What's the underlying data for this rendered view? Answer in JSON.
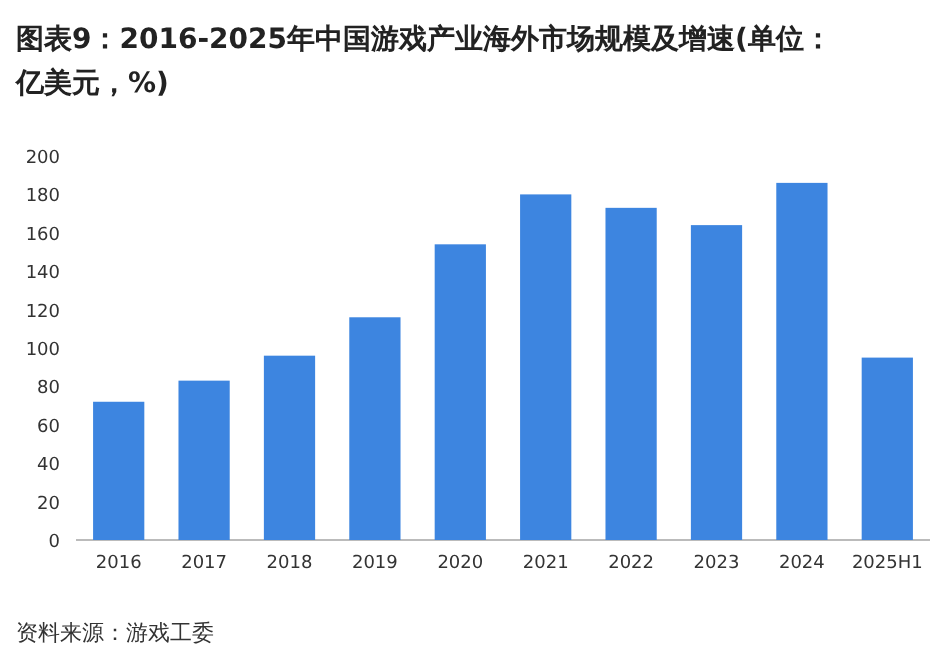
{
  "chart_data": {
    "type": "bar",
    "title": "图表9：2016-2025年中国游戏产业海外市场规模及增速(单位：亿美元，%)",
    "categories": [
      "2016",
      "2017",
      "2018",
      "2019",
      "2020",
      "2021",
      "2022",
      "2023",
      "2024",
      "2025H1"
    ],
    "values": [
      72,
      83,
      96,
      116,
      154,
      180,
      173,
      164,
      186,
      95
    ],
    "color": "#3d85e0",
    "ylim": [
      0,
      200
    ],
    "yticks": [
      0,
      20,
      40,
      60,
      80,
      100,
      120,
      140,
      160,
      180,
      200
    ],
    "grid": false,
    "annotations": [
      "资料来源：游戏工委"
    ]
  }
}
